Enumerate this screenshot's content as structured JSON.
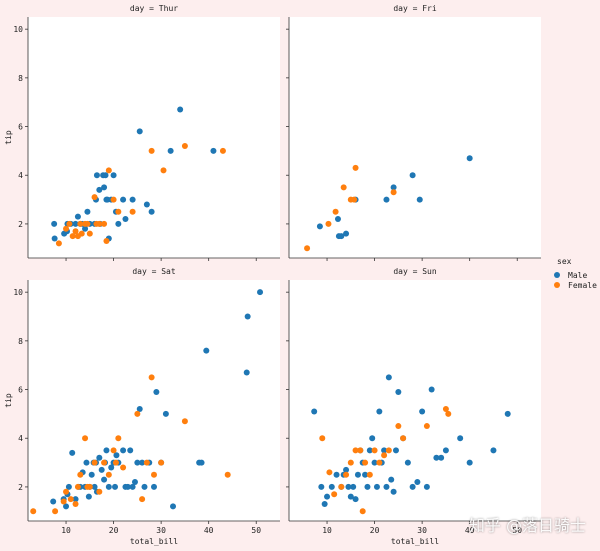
{
  "chart_data": {
    "type": "scatter",
    "facet_by": "day",
    "hue": "sex",
    "colors": {
      "Male": "#1f77b4",
      "Female": "#ff7f0e"
    },
    "xlabel": "total_bill",
    "ylabel": "tip",
    "xlim": [
      2,
      55
    ],
    "ylim": [
      0.6,
      10.5
    ],
    "xticks": [
      10,
      20,
      30,
      40,
      50
    ],
    "yticks": [
      2,
      4,
      6,
      8,
      10
    ],
    "legend": {
      "title": "sex",
      "entries": [
        "Male",
        "Female"
      ],
      "placement": "right"
    },
    "panels": [
      {
        "title": "day = Thur",
        "series": [
          {
            "name": "Male",
            "points": [
              [
                7.5,
                2.0
              ],
              [
                7.6,
                1.4
              ],
              [
                9.6,
                1.6
              ],
              [
                10.2,
                1.7
              ],
              [
                10.3,
                2.0
              ],
              [
                11.0,
                2.0
              ],
              [
                12.0,
                2.0
              ],
              [
                12.5,
                2.3
              ],
              [
                13.0,
                2.0
              ],
              [
                13.4,
                2.0
              ],
              [
                14.0,
                1.8
              ],
              [
                14.5,
                2.5
              ],
              [
                15.0,
                2.0
              ],
              [
                16.0,
                2.0
              ],
              [
                16.3,
                3.0
              ],
              [
                16.5,
                4.0
              ],
              [
                17.0,
                3.4
              ],
              [
                17.2,
                2.0
              ],
              [
                17.8,
                4.0
              ],
              [
                18.0,
                3.5
              ],
              [
                18.3,
                4.0
              ],
              [
                18.5,
                3.0
              ],
              [
                18.7,
                3.0
              ],
              [
                19.0,
                1.4
              ],
              [
                19.5,
                3.0
              ],
              [
                20.0,
                4.0
              ],
              [
                20.5,
                2.5
              ],
              [
                21.0,
                2.0
              ],
              [
                22.0,
                3.0
              ],
              [
                22.5,
                2.2
              ],
              [
                24.0,
                3.0
              ],
              [
                25.5,
                5.8
              ],
              [
                27.0,
                2.8
              ],
              [
                28.0,
                2.5
              ],
              [
                32.0,
                5.0
              ],
              [
                34.0,
                6.7
              ],
              [
                41.0,
                5.0
              ]
            ]
          },
          {
            "name": "Female",
            "points": [
              [
                8.5,
                1.2
              ],
              [
                10.0,
                1.8
              ],
              [
                10.7,
                2.0
              ],
              [
                11.4,
                1.5
              ],
              [
                12.0,
                1.7
              ],
              [
                12.5,
                1.5
              ],
              [
                13.0,
                2.0
              ],
              [
                13.3,
                1.6
              ],
              [
                14.0,
                2.0
              ],
              [
                14.5,
                2.0
              ],
              [
                15.0,
                1.6
              ],
              [
                16.0,
                3.1
              ],
              [
                16.4,
                2.0
              ],
              [
                17.0,
                2.0
              ],
              [
                18.0,
                2.0
              ],
              [
                18.5,
                1.3
              ],
              [
                19.0,
                4.2
              ],
              [
                20.0,
                3.0
              ],
              [
                21.0,
                2.5
              ],
              [
                24.0,
                2.5
              ],
              [
                28.0,
                5.0
              ],
              [
                30.5,
                4.2
              ],
              [
                35.0,
                5.2
              ],
              [
                43.0,
                5.0
              ]
            ]
          }
        ]
      },
      {
        "title": "day = Fri",
        "series": [
          {
            "name": "Male",
            "points": [
              [
                8.5,
                1.9
              ],
              [
                12.3,
                2.2
              ],
              [
                12.5,
                1.5
              ],
              [
                13.0,
                1.5
              ],
              [
                14.0,
                1.6
              ],
              [
                16.0,
                3.0
              ],
              [
                22.5,
                3.0
              ],
              [
                24.0,
                3.5
              ],
              [
                28.0,
                4.0
              ],
              [
                29.5,
                3.0
              ],
              [
                40.0,
                4.7
              ]
            ]
          },
          {
            "name": "Female",
            "points": [
              [
                5.8,
                1.0
              ],
              [
                10.3,
                2.0
              ],
              [
                11.8,
                2.5
              ],
              [
                13.5,
                3.5
              ],
              [
                15.0,
                3.0
              ],
              [
                15.7,
                3.0
              ],
              [
                16.0,
                4.3
              ],
              [
                24.0,
                3.3
              ]
            ]
          }
        ]
      },
      {
        "title": "day = Sat",
        "series": [
          {
            "name": "Male",
            "points": [
              [
                7.3,
                1.4
              ],
              [
                9.5,
                1.5
              ],
              [
                10.0,
                1.2
              ],
              [
                10.3,
                1.7
              ],
              [
                10.6,
                2.0
              ],
              [
                11.3,
                3.4
              ],
              [
                12.0,
                1.5
              ],
              [
                12.6,
                2.0
              ],
              [
                13.0,
                2.0
              ],
              [
                13.5,
                2.6
              ],
              [
                14.0,
                2.0
              ],
              [
                14.3,
                3.0
              ],
              [
                14.8,
                1.6
              ],
              [
                15.0,
                2.0
              ],
              [
                15.4,
                2.5
              ],
              [
                15.8,
                3.0
              ],
              [
                16.0,
                2.0
              ],
              [
                16.3,
                3.0
              ],
              [
                16.5,
                1.8
              ],
              [
                17.0,
                3.2
              ],
              [
                17.5,
                2.7
              ],
              [
                18.0,
                2.3
              ],
              [
                18.2,
                3.0
              ],
              [
                18.5,
                3.5
              ],
              [
                19.0,
                2.0
              ],
              [
                19.5,
                2.8
              ],
              [
                20.0,
                3.0
              ],
              [
                20.3,
                2.0
              ],
              [
                20.6,
                3.3
              ],
              [
                21.0,
                3.0
              ],
              [
                22.0,
                3.5
              ],
              [
                22.5,
                2.0
              ],
              [
                23.0,
                2.0
              ],
              [
                23.5,
                3.5
              ],
              [
                24.0,
                2.0
              ],
              [
                24.5,
                2.2
              ],
              [
                25.0,
                3.0
              ],
              [
                25.5,
                5.2
              ],
              [
                26.0,
                3.0
              ],
              [
                26.5,
                2.0
              ],
              [
                27.5,
                3.0
              ],
              [
                28.5,
                2.0
              ],
              [
                29.0,
                5.9
              ],
              [
                30.0,
                3.0
              ],
              [
                31.0,
                5.0
              ],
              [
                32.5,
                1.2
              ],
              [
                38.0,
                3.0
              ],
              [
                38.5,
                3.0
              ],
              [
                39.5,
                7.6
              ],
              [
                48.0,
                6.7
              ],
              [
                48.2,
                9.0
              ],
              [
                50.8,
                10.0
              ]
            ]
          },
          {
            "name": "Female",
            "points": [
              [
                3.1,
                1.0
              ],
              [
                7.7,
                1.0
              ],
              [
                9.5,
                1.4
              ],
              [
                10.0,
                1.8
              ],
              [
                11.0,
                1.5
              ],
              [
                12.0,
                1.3
              ],
              [
                12.5,
                2.0
              ],
              [
                13.0,
                2.5
              ],
              [
                14.0,
                4.0
              ],
              [
                14.5,
                2.0
              ],
              [
                15.0,
                2.0
              ],
              [
                16.0,
                3.0
              ],
              [
                17.0,
                1.8
              ],
              [
                18.0,
                3.0
              ],
              [
                19.0,
                2.5
              ],
              [
                20.0,
                3.5
              ],
              [
                20.5,
                3.0
              ],
              [
                21.0,
                4.0
              ],
              [
                22.0,
                2.8
              ],
              [
                25.0,
                5.0
              ],
              [
                26.0,
                1.5
              ],
              [
                27.0,
                3.0
              ],
              [
                28.0,
                6.5
              ],
              [
                28.5,
                2.5
              ],
              [
                30.0,
                3.0
              ],
              [
                35.0,
                4.7
              ],
              [
                44.0,
                2.5
              ]
            ]
          }
        ]
      },
      {
        "title": "day = Sun",
        "series": [
          {
            "name": "Male",
            "points": [
              [
                7.3,
                5.1
              ],
              [
                8.8,
                2.0
              ],
              [
                9.5,
                1.3
              ],
              [
                10.0,
                1.6
              ],
              [
                11.0,
                2.0
              ],
              [
                12.0,
                2.5
              ],
              [
                13.0,
                2.0
              ],
              [
                13.5,
                2.5
              ],
              [
                14.0,
                2.7
              ],
              [
                14.5,
                2.0
              ],
              [
                15.0,
                1.6
              ],
              [
                15.5,
                2.0
              ],
              [
                16.0,
                1.5
              ],
              [
                16.5,
                2.5
              ],
              [
                17.0,
                3.5
              ],
              [
                17.5,
                3.0
              ],
              [
                18.0,
                2.5
              ],
              [
                18.5,
                2.0
              ],
              [
                19.0,
                3.5
              ],
              [
                19.5,
                4.0
              ],
              [
                20.0,
                3.0
              ],
              [
                20.5,
                2.0
              ],
              [
                21.0,
                5.1
              ],
              [
                21.5,
                3.0
              ],
              [
                22.0,
                3.5
              ],
              [
                22.5,
                2.0
              ],
              [
                23.0,
                6.5
              ],
              [
                23.5,
                2.3
              ],
              [
                24.0,
                1.8
              ],
              [
                24.5,
                3.5
              ],
              [
                25.0,
                5.9
              ],
              [
                26.0,
                4.0
              ],
              [
                27.0,
                3.0
              ],
              [
                28.0,
                2.0
              ],
              [
                29.0,
                2.2
              ],
              [
                30.0,
                5.1
              ],
              [
                31.0,
                2.0
              ],
              [
                32.0,
                6.0
              ],
              [
                33.0,
                3.2
              ],
              [
                34.0,
                3.2
              ],
              [
                35.0,
                3.5
              ],
              [
                38.0,
                4.0
              ],
              [
                40.0,
                3.0
              ],
              [
                45.0,
                3.5
              ],
              [
                48.0,
                5.0
              ]
            ]
          },
          {
            "name": "Female",
            "points": [
              [
                9.0,
                4.0
              ],
              [
                10.5,
                2.6
              ],
              [
                11.5,
                1.7
              ],
              [
                13.0,
                2.0
              ],
              [
                14.0,
                2.5
              ],
              [
                15.0,
                3.0
              ],
              [
                16.0,
                3.5
              ],
              [
                17.0,
                3.5
              ],
              [
                17.5,
                1.0
              ],
              [
                18.0,
                3.0
              ],
              [
                19.0,
                2.5
              ],
              [
                20.0,
                3.5
              ],
              [
                21.0,
                3.0
              ],
              [
                22.0,
                3.3
              ],
              [
                23.0,
                3.5
              ],
              [
                25.0,
                4.5
              ],
              [
                26.0,
                4.0
              ],
              [
                31.0,
                4.5
              ],
              [
                35.0,
                5.2
              ],
              [
                35.5,
                5.0
              ]
            ]
          }
        ]
      }
    ]
  },
  "watermark": "知乎 @落日骑士"
}
